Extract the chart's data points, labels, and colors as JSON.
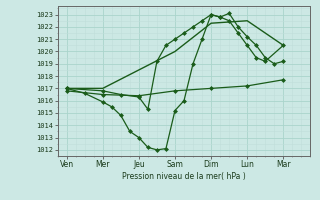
{
  "bg_color": "#cce8e4",
  "grid_color_major": "#aad4cc",
  "grid_color_minor": "#c0deda",
  "line_color": "#1a5c1a",
  "ylabel": "Pression niveau de la mer( hPa )",
  "ylim": [
    1011.5,
    1023.7
  ],
  "yticks": [
    1012,
    1013,
    1014,
    1015,
    1016,
    1017,
    1018,
    1019,
    1020,
    1021,
    1022,
    1023
  ],
  "xtick_labels": [
    "Ven",
    "Mer",
    "Jeu",
    "Sam",
    "Dim",
    "Lun",
    "Mar"
  ],
  "xtick_positions": [
    0,
    2,
    4,
    6,
    8,
    10,
    12
  ],
  "xlim": [
    -0.5,
    13.5
  ],
  "series1_flat": {
    "x": [
      0,
      2,
      4,
      6,
      8,
      10,
      12
    ],
    "y": [
      1016.8,
      1016.5,
      1016.4,
      1016.8,
      1017.0,
      1017.2,
      1017.7
    ]
  },
  "series2_dip": {
    "x": [
      0,
      1,
      2,
      2.5,
      3,
      3.5,
      4,
      4.5,
      5,
      5.5,
      6,
      6.5,
      7,
      7.5,
      8,
      8.5,
      9,
      9.5,
      10,
      10.5,
      11,
      11.5,
      12
    ],
    "y": [
      1017.0,
      1016.6,
      1015.9,
      1015.5,
      1014.8,
      1013.5,
      1013.0,
      1012.2,
      1012.0,
      1012.1,
      1015.2,
      1016.0,
      1019.0,
      1021.0,
      1023.0,
      1022.8,
      1023.1,
      1022.0,
      1021.2,
      1020.5,
      1019.5,
      1019.0,
      1019.2
    ]
  },
  "series3_rise": {
    "x": [
      0,
      2,
      3,
      4,
      4.5,
      5,
      5.5,
      6,
      6.5,
      7,
      7.5,
      8,
      8.5,
      9,
      9.5,
      10,
      10.5,
      11,
      12
    ],
    "y": [
      1017.0,
      1016.8,
      1016.5,
      1016.3,
      1015.3,
      1019.2,
      1020.5,
      1021.0,
      1021.5,
      1022.0,
      1022.5,
      1023.0,
      1022.8,
      1022.5,
      1021.5,
      1020.5,
      1019.5,
      1019.2,
      1020.5
    ]
  },
  "series4_smooth": {
    "x": [
      0,
      2,
      4,
      6,
      8,
      10,
      12
    ],
    "y": [
      1017.0,
      1017.0,
      1018.5,
      1020.0,
      1022.3,
      1022.5,
      1020.5
    ]
  }
}
